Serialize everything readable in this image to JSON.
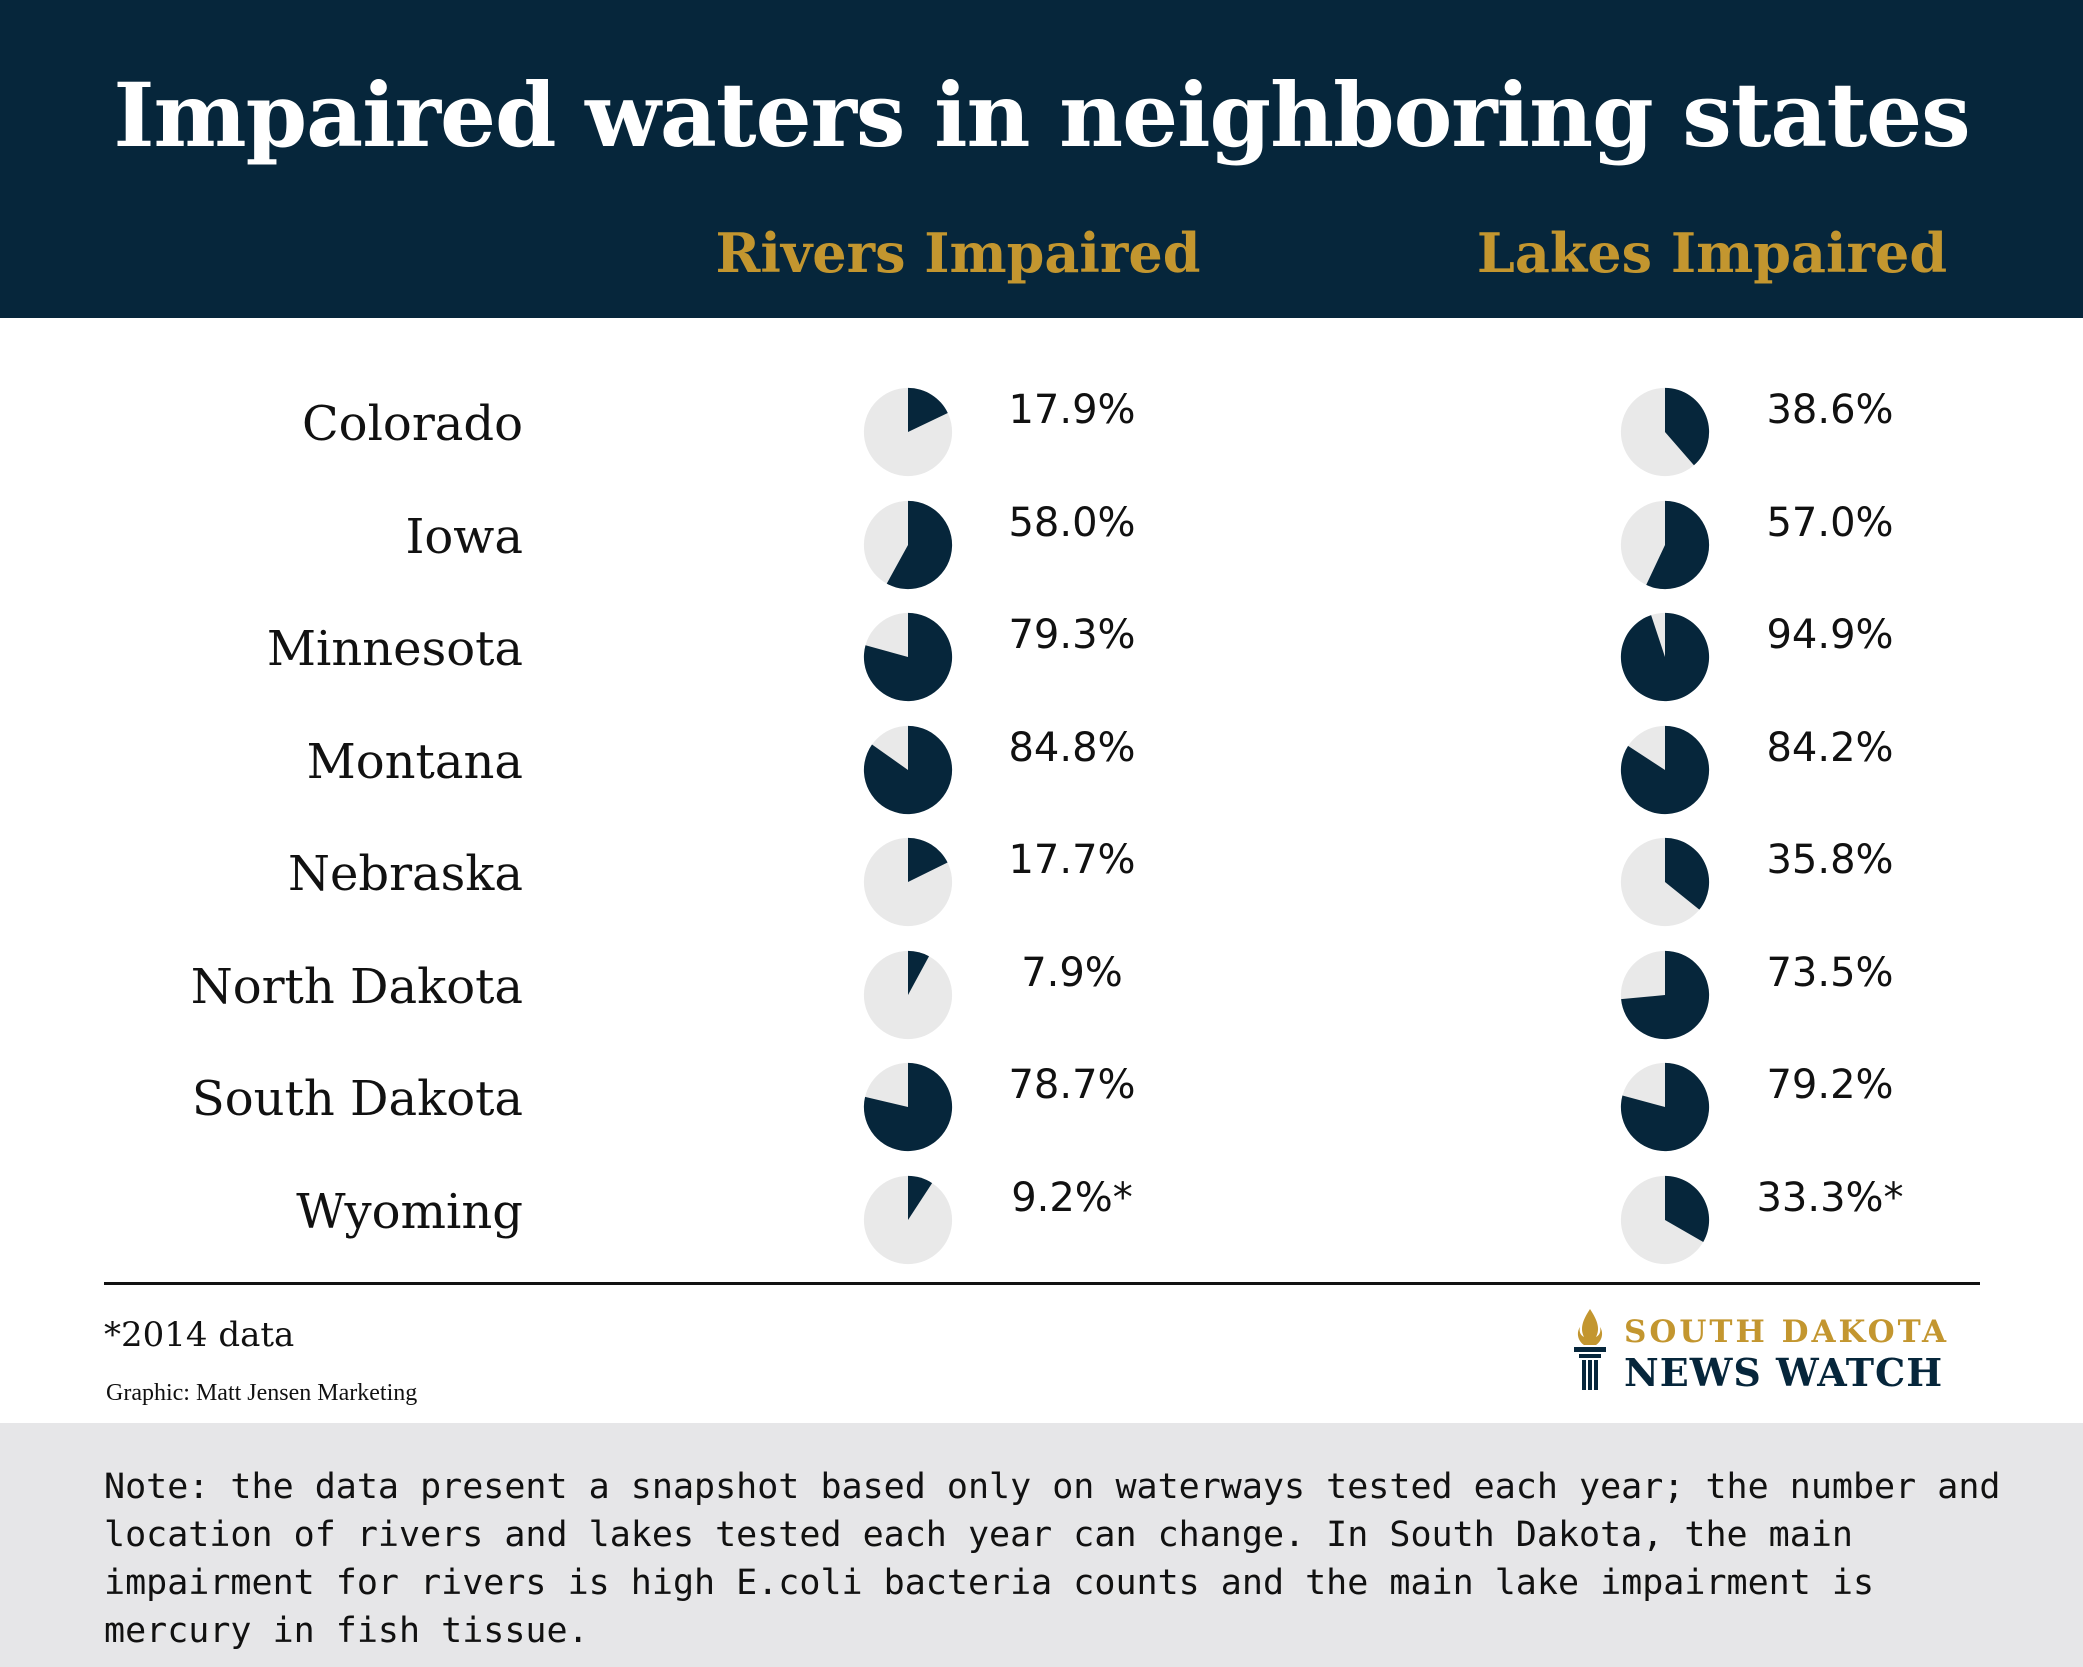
{
  "header": {
    "title": "Impaired waters in neighboring states",
    "rivers_heading": "Rivers Impaired",
    "lakes_heading": "Lakes Impaired"
  },
  "colors": {
    "header_bg": "#06263b",
    "accent_gold": "#c3962f",
    "pie_fill": "#06263b",
    "pie_bg": "#e9e9e9",
    "note_bg": "#e6e6e8"
  },
  "chart_data": {
    "type": "pie",
    "categories": [
      "Colorado",
      "Iowa",
      "Minnesota",
      "Montana",
      "Nebraska",
      "North Dakota",
      "South Dakota",
      "Wyoming"
    ],
    "series": [
      {
        "name": "Rivers Impaired",
        "values": [
          17.9,
          58.0,
          79.3,
          84.8,
          17.7,
          7.9,
          78.7,
          9.2
        ],
        "labels": [
          "17.9%",
          "58.0%",
          "79.3%",
          "84.8%",
          "17.7%",
          "7.9%",
          "78.7%",
          "9.2%*"
        ]
      },
      {
        "name": "Lakes Impaired",
        "values": [
          38.6,
          57.0,
          94.9,
          84.2,
          35.8,
          73.5,
          79.2,
          33.3
        ],
        "labels": [
          "38.6%",
          "57.0%",
          "94.9%",
          "84.2%",
          "35.8%",
          "73.5%",
          "79.2%",
          "33.3%*"
        ]
      }
    ]
  },
  "footer": {
    "footnote": "*2014 data",
    "credit": "Graphic: Matt Jensen Marketing",
    "logo_top": "SOUTH DAKOTA",
    "logo_bottom": "NEWS WATCH",
    "logo_icon": "torch-icon",
    "note": "Note: the data present a snapshot based only on waterways tested each year; the number and location of rivers and lakes tested each year can change. In South Dakota, the main impairment for rivers is high E.coli bacteria counts and the main lake impairment is mercury in fish tissue."
  }
}
